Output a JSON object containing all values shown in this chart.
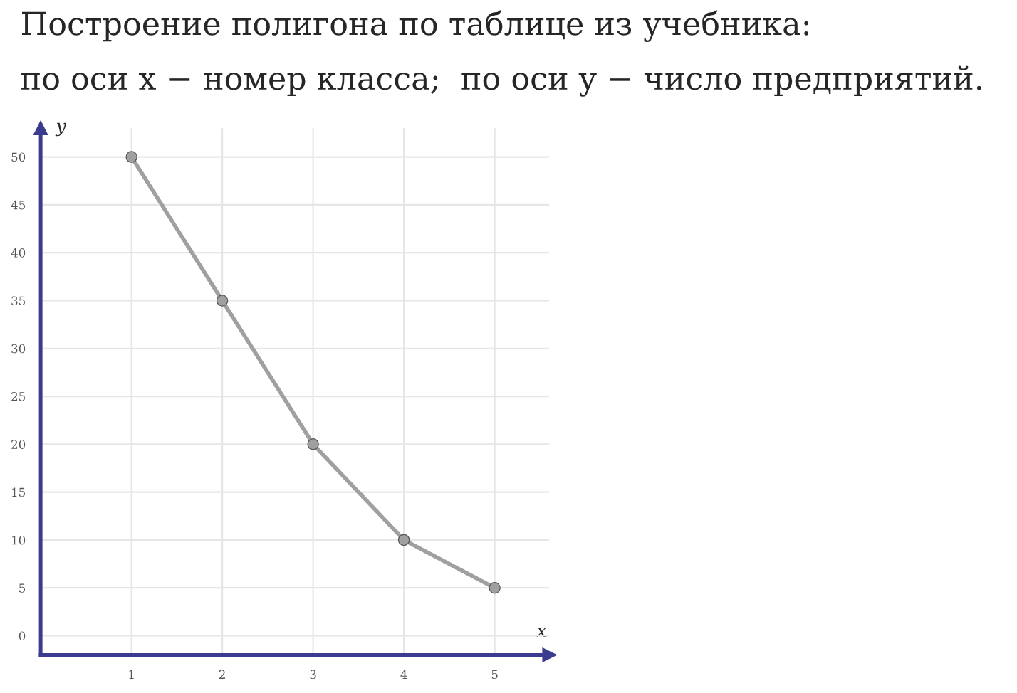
{
  "chart_data": {
    "type": "line",
    "title": "Построение полигона по таблице из учебника:",
    "subtitle": "по оси x − номер класса;  по оси y − число предприятий.",
    "xlabel": "x",
    "ylabel": "y",
    "x": [
      1,
      2,
      3,
      4,
      5
    ],
    "series": [
      {
        "color": "#a0a0a0",
        "values": [
          50,
          35,
          20,
          10,
          5
        ]
      }
    ],
    "xlim": [
      0,
      5.6
    ],
    "ylim": [
      -2,
      53
    ],
    "xticks": [
      1,
      2,
      3,
      4,
      5
    ],
    "yticks": [
      0,
      5,
      10,
      15,
      20,
      25,
      30,
      35,
      40,
      45,
      50
    ],
    "grid": true,
    "marker": "circle",
    "line_style": "solid",
    "legend": false
  }
}
